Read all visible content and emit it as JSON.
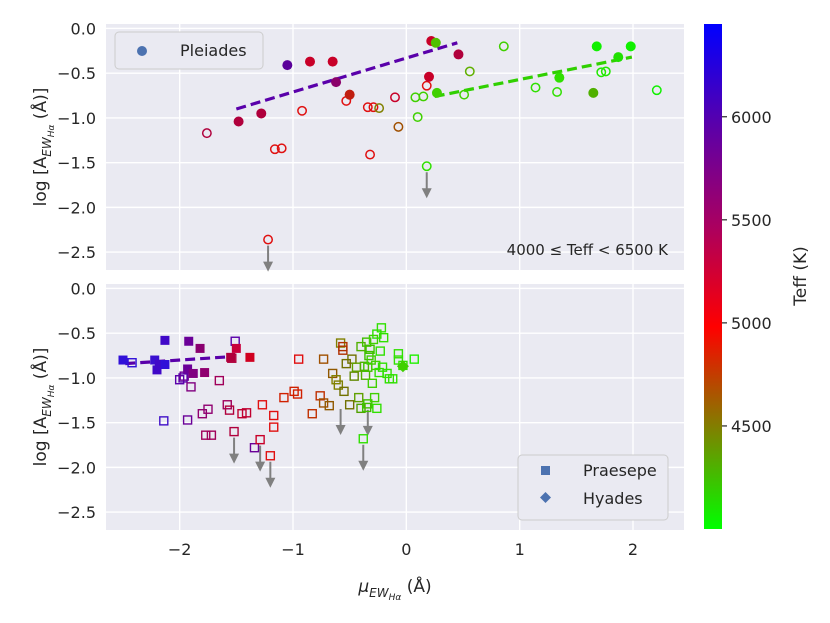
{
  "chart_data": {
    "type": "scatter",
    "shared_x": {
      "label_main": "μ",
      "label_sub": "EW",
      "label_subsub": "Hα",
      "label_unit": " (Å)",
      "range": [
        -2.65,
        2.45
      ],
      "ticks": [
        -2,
        -1,
        0,
        1,
        2
      ],
      "tick_labels": [
        "−2",
        "−1",
        "0",
        "1",
        "2"
      ]
    },
    "colorbar": {
      "label": "Teff (K)",
      "range": [
        4000,
        6450
      ],
      "ticks": [
        4500,
        5000,
        5500,
        6000
      ],
      "tick_labels": [
        "4500",
        "5000",
        "5500",
        "6000"
      ],
      "stops": [
        "#00ff00",
        "#808000",
        "#ff0000",
        "#aa0060",
        "#5a00aa",
        "#0000ff"
      ]
    },
    "panels": [
      {
        "name": "top",
        "ylabel_main": "log [A",
        "ylabel_sub": "EW",
        "ylabel_subsub": "Hα",
        "ylabel_unit": " (Å)]",
        "y_range": [
          -2.7,
          0.05
        ],
        "y_ticks": [
          0,
          -0.5,
          -1,
          -1.5,
          -2,
          -2.5
        ],
        "y_tick_labels": [
          "0.0",
          "−0.5",
          "−1.0",
          "−1.5",
          "−2.0",
          "−2.5"
        ],
        "annotation": "4000  ≤  Teff < 6500 K",
        "legend": [
          {
            "label": "Pleiades",
            "marker": "circle",
            "color": "#4c72b0"
          }
        ],
        "filled": [
          {
            "x": -1.48,
            "y": -1.04,
            "c": "#b0003c"
          },
          {
            "x": -1.28,
            "y": -0.95,
            "c": "#b0003c"
          },
          {
            "x": -1.05,
            "y": -0.41,
            "c": "#5a009a"
          },
          {
            "x": -0.85,
            "y": -0.37,
            "c": "#c80028"
          },
          {
            "x": -0.65,
            "y": -0.37,
            "c": "#c80028"
          },
          {
            "x": -0.62,
            "y": -0.6,
            "c": "#8a006a"
          },
          {
            "x": -0.5,
            "y": -0.74,
            "c": "#c01e10"
          },
          {
            "x": 0.2,
            "y": -0.54,
            "c": "#c80028"
          },
          {
            "x": 0.22,
            "y": -0.14,
            "c": "#c80028"
          },
          {
            "x": 0.26,
            "y": -0.16,
            "c": "#50c000"
          },
          {
            "x": 0.46,
            "y": -0.29,
            "c": "#b0003c"
          },
          {
            "x": 0.27,
            "y": -0.72,
            "c": "#40d000"
          },
          {
            "x": 1.35,
            "y": -0.55,
            "c": "#30e000"
          },
          {
            "x": 1.65,
            "y": -0.72,
            "c": "#50b000"
          },
          {
            "x": 1.68,
            "y": -0.2,
            "c": "#10f000"
          },
          {
            "x": 1.87,
            "y": -0.32,
            "c": "#20e000"
          },
          {
            "x": 1.98,
            "y": -0.2,
            "c": "#10f000"
          }
        ],
        "open": [
          {
            "x": -1.76,
            "y": -1.17,
            "c": "#b0003c"
          },
          {
            "x": -1.16,
            "y": -1.35,
            "c": "#e01010"
          },
          {
            "x": -1.1,
            "y": -1.34,
            "c": "#e01010"
          },
          {
            "x": -0.92,
            "y": -0.92,
            "c": "#e01010"
          },
          {
            "x": -0.53,
            "y": -0.81,
            "c": "#e01010"
          },
          {
            "x": -0.34,
            "y": -0.88,
            "c": "#e01010"
          },
          {
            "x": -0.29,
            "y": -0.88,
            "c": "#e01010"
          },
          {
            "x": -0.24,
            "y": -0.89,
            "c": "#808000"
          },
          {
            "x": -0.1,
            "y": -0.77,
            "c": "#c80028"
          },
          {
            "x": -0.07,
            "y": -1.1,
            "c": "#a05000"
          },
          {
            "x": 0.08,
            "y": -0.77,
            "c": "#40d000"
          },
          {
            "x": 0.1,
            "y": -0.99,
            "c": "#40d000"
          },
          {
            "x": 0.15,
            "y": -0.76,
            "c": "#40d000"
          },
          {
            "x": 0.18,
            "y": -0.64,
            "c": "#e01010"
          },
          {
            "x": 0.51,
            "y": -0.74,
            "c": "#40d000"
          },
          {
            "x": 0.56,
            "y": -0.48,
            "c": "#60b000"
          },
          {
            "x": 0.86,
            "y": -0.2,
            "c": "#40d000"
          },
          {
            "x": 1.14,
            "y": -0.66,
            "c": "#30e000"
          },
          {
            "x": 1.33,
            "y": -0.71,
            "c": "#30e000"
          },
          {
            "x": 1.72,
            "y": -0.49,
            "c": "#20e800"
          },
          {
            "x": 1.76,
            "y": -0.48,
            "c": "#20e800"
          },
          {
            "x": 2.21,
            "y": -0.69,
            "c": "#10f000"
          },
          {
            "x": -0.32,
            "y": -1.41,
            "c": "#e01010"
          },
          {
            "x": 0.18,
            "y": -1.54,
            "c": "#30e000"
          },
          {
            "x": -1.22,
            "y": -2.36,
            "c": "#e01010"
          }
        ],
        "upper_limits": [
          {
            "x": 0.18,
            "y": -1.54
          },
          {
            "x": -1.22,
            "y": -2.36
          }
        ],
        "fits": [
          {
            "x": [
              -1.5,
              0.45
            ],
            "y": [
              -0.9,
              -0.16
            ],
            "c": "#5a00aa"
          },
          {
            "x": 0.25,
            "x2": 1.99,
            "y": [
              -0.76,
              -0.32
            ],
            "c": "#30d000"
          }
        ]
      },
      {
        "name": "bottom",
        "ylabel_main": "log [A",
        "ylabel_sub": "EW",
        "ylabel_subsub": "Hα",
        "ylabel_unit": " (Å)]",
        "y_range": [
          -2.7,
          0.05
        ],
        "y_ticks": [
          0,
          -0.5,
          -1,
          -1.5,
          -2,
          -2.5
        ],
        "y_tick_labels": [
          "0.0",
          "−0.5",
          "−1.0",
          "−1.5",
          "−2.0",
          "−2.5"
        ],
        "legend": [
          {
            "label": "Praesepe",
            "marker": "square",
            "color": "#4c72b0"
          },
          {
            "label": "Hyades",
            "marker": "diamond",
            "color": "#4c72b0"
          }
        ],
        "filled": [
          {
            "x": -2.5,
            "y": -0.8,
            "c": "#3010d8"
          },
          {
            "x": -2.22,
            "y": -0.8,
            "c": "#3a10d0"
          },
          {
            "x": -2.18,
            "y": -0.85,
            "c": "#4008c8"
          },
          {
            "x": -2.2,
            "y": -0.91,
            "c": "#4008c8"
          },
          {
            "x": -2.13,
            "y": -0.85,
            "c": "#3010d8"
          },
          {
            "x": -2.13,
            "y": -0.58,
            "c": "#4008c8"
          },
          {
            "x": -1.92,
            "y": -0.59,
            "c": "#6a0098"
          },
          {
            "x": -1.93,
            "y": -0.9,
            "c": "#6a0098"
          },
          {
            "x": -1.88,
            "y": -0.95,
            "c": "#800080"
          },
          {
            "x": -1.82,
            "y": -0.67,
            "c": "#8a0070"
          },
          {
            "x": -1.78,
            "y": -0.94,
            "c": "#900070"
          },
          {
            "x": -1.55,
            "y": -0.77,
            "c": "#b0003c"
          },
          {
            "x": -1.5,
            "y": -0.67,
            "c": "#c8003c"
          },
          {
            "x": -1.38,
            "y": -0.77,
            "c": "#d00020"
          }
        ],
        "filled_diamonds": [
          {
            "x": -0.03,
            "y": -0.87,
            "c": "#40d000"
          }
        ],
        "open": [
          {
            "x": -2.42,
            "y": -0.83,
            "c": "#3010d8"
          },
          {
            "x": -2.14,
            "y": -1.48,
            "c": "#4010c8"
          },
          {
            "x": -2.0,
            "y": -1.02,
            "c": "#5a00aa"
          },
          {
            "x": -1.97,
            "y": -1.0,
            "c": "#5a00aa"
          },
          {
            "x": -1.96,
            "y": -0.98,
            "c": "#6a0098"
          },
          {
            "x": -1.93,
            "y": -1.47,
            "c": "#6a0098"
          },
          {
            "x": -1.9,
            "y": -1.1,
            "c": "#800080"
          },
          {
            "x": -1.8,
            "y": -1.4,
            "c": "#900070"
          },
          {
            "x": -1.75,
            "y": -1.35,
            "c": "#900070"
          },
          {
            "x": -1.77,
            "y": -1.64,
            "c": "#a0005a"
          },
          {
            "x": -1.72,
            "y": -1.64,
            "c": "#a0005a"
          },
          {
            "x": -1.65,
            "y": -1.03,
            "c": "#a0005a"
          },
          {
            "x": -1.58,
            "y": -1.3,
            "c": "#a0005a"
          },
          {
            "x": -1.56,
            "y": -1.36,
            "c": "#b0003c"
          },
          {
            "x": -1.54,
            "y": -0.78,
            "c": "#b0003c"
          },
          {
            "x": -1.51,
            "y": -0.59,
            "c": "#5a00aa"
          },
          {
            "x": -1.52,
            "y": -1.6,
            "c": "#b0003c"
          },
          {
            "x": -1.45,
            "y": -1.4,
            "c": "#c00030"
          },
          {
            "x": -1.41,
            "y": -1.39,
            "c": "#c00030"
          },
          {
            "x": -1.34,
            "y": -1.78,
            "c": "#6a0098"
          },
          {
            "x": -1.29,
            "y": -1.69,
            "c": "#c80028"
          },
          {
            "x": -1.27,
            "y": -1.3,
            "c": "#e01010"
          },
          {
            "x": -1.2,
            "y": -1.87,
            "c": "#e01010"
          },
          {
            "x": -1.17,
            "y": -1.42,
            "c": "#e01010"
          },
          {
            "x": -1.17,
            "y": -1.55,
            "c": "#e01010"
          },
          {
            "x": -1.08,
            "y": -1.22,
            "c": "#d02000"
          },
          {
            "x": -0.99,
            "y": -1.15,
            "c": "#d02000"
          },
          {
            "x": -0.96,
            "y": -1.18,
            "c": "#d02000"
          },
          {
            "x": -0.95,
            "y": -0.79,
            "c": "#e01010"
          },
          {
            "x": -0.83,
            "y": -1.4,
            "c": "#c03000"
          },
          {
            "x": -0.76,
            "y": -1.2,
            "c": "#c03000"
          },
          {
            "x": -0.73,
            "y": -0.79,
            "c": "#a05000"
          },
          {
            "x": -0.73,
            "y": -1.28,
            "c": "#a05000"
          },
          {
            "x": -0.68,
            "y": -1.31,
            "c": "#905800"
          },
          {
            "x": -0.65,
            "y": -0.95,
            "c": "#905800"
          },
          {
            "x": -0.62,
            "y": -1.02,
            "c": "#808000"
          },
          {
            "x": -0.6,
            "y": -1.08,
            "c": "#808000"
          },
          {
            "x": -0.58,
            "y": -0.61,
            "c": "#808000"
          },
          {
            "x": -0.56,
            "y": -0.65,
            "c": "#b03000"
          },
          {
            "x": -0.56,
            "y": -0.69,
            "c": "#b03000"
          },
          {
            "x": -0.55,
            "y": -1.15,
            "c": "#707000"
          },
          {
            "x": -0.53,
            "y": -0.84,
            "c": "#707000"
          },
          {
            "x": -0.5,
            "y": -1.3,
            "c": "#707000"
          },
          {
            "x": -0.48,
            "y": -0.79,
            "c": "#707000"
          },
          {
            "x": -0.46,
            "y": -0.98,
            "c": "#608800"
          },
          {
            "x": -0.44,
            "y": -0.88,
            "c": "#60a000"
          },
          {
            "x": -0.42,
            "y": -1.22,
            "c": "#60a000"
          },
          {
            "x": -0.4,
            "y": -1.34,
            "c": "#50a000"
          },
          {
            "x": -0.4,
            "y": -0.65,
            "c": "#50b000"
          },
          {
            "x": -0.37,
            "y": -0.87,
            "c": "#50b000"
          },
          {
            "x": -0.36,
            "y": -0.97,
            "c": "#50b000"
          },
          {
            "x": -0.35,
            "y": -0.6,
            "c": "#40c000"
          },
          {
            "x": -0.35,
            "y": -1.33,
            "c": "#40c000"
          },
          {
            "x": -0.34,
            "y": -1.29,
            "c": "#40c000"
          },
          {
            "x": -0.34,
            "y": -0.88,
            "c": "#40c000"
          },
          {
            "x": -0.33,
            "y": -0.75,
            "c": "#40c000"
          },
          {
            "x": -0.32,
            "y": -0.68,
            "c": "#40c000"
          },
          {
            "x": -0.31,
            "y": -0.8,
            "c": "#40d000"
          },
          {
            "x": -0.3,
            "y": -1.06,
            "c": "#40d000"
          },
          {
            "x": -0.29,
            "y": -0.57,
            "c": "#40d000"
          },
          {
            "x": -0.28,
            "y": -1.22,
            "c": "#40d000"
          },
          {
            "x": -0.27,
            "y": -0.86,
            "c": "#40d000"
          },
          {
            "x": -0.26,
            "y": -1.34,
            "c": "#30e000"
          },
          {
            "x": -0.26,
            "y": -0.51,
            "c": "#30e000"
          },
          {
            "x": -0.24,
            "y": -0.94,
            "c": "#30e000"
          },
          {
            "x": -0.23,
            "y": -0.7,
            "c": "#30e000"
          },
          {
            "x": -0.22,
            "y": -0.44,
            "c": "#30e000"
          },
          {
            "x": -0.21,
            "y": -0.88,
            "c": "#30e000"
          },
          {
            "x": -0.2,
            "y": -0.55,
            "c": "#30e000"
          },
          {
            "x": -0.17,
            "y": -0.95,
            "c": "#30e000"
          },
          {
            "x": -0.15,
            "y": -1.01,
            "c": "#30e000"
          },
          {
            "x": -0.12,
            "y": -1.01,
            "c": "#30e000"
          },
          {
            "x": -0.07,
            "y": -0.73,
            "c": "#30e000"
          },
          {
            "x": -0.07,
            "y": -0.8,
            "c": "#30e000"
          },
          {
            "x": -0.03,
            "y": -0.86,
            "c": "#30e000"
          },
          {
            "x": 0.07,
            "y": -0.79,
            "c": "#20f000"
          },
          {
            "x": -0.38,
            "y": -1.68,
            "c": "#30e000"
          }
        ],
        "upper_limits": [
          {
            "x": -1.52,
            "y": -1.6
          },
          {
            "x": -1.29,
            "y": -1.69
          },
          {
            "x": -1.2,
            "y": -1.87
          },
          {
            "x": -0.58,
            "y": -1.28
          },
          {
            "x": -0.34,
            "y": -1.29
          },
          {
            "x": -0.38,
            "y": -1.68
          }
        ],
        "fits": [
          {
            "x": [
              -2.48,
              -1.52
            ],
            "y": [
              -0.84,
              -0.76
            ],
            "c": "#5a00aa"
          }
        ]
      }
    ]
  }
}
